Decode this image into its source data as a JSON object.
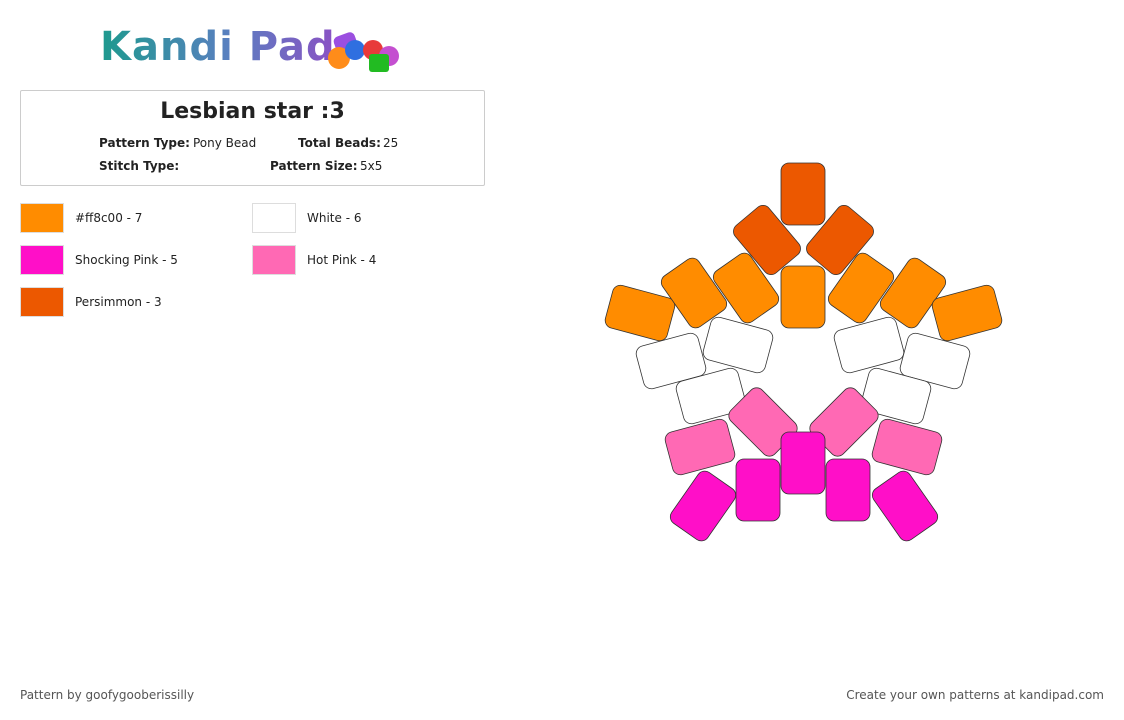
{
  "header": {
    "logo": "Kandi Pad"
  },
  "pattern": {
    "title": "Lesbian star :3",
    "fields": [
      {
        "label": "Pattern Type:",
        "value": "Pony Bead"
      },
      {
        "label": "Total Beads:",
        "value": "25"
      },
      {
        "label": "Stitch Type:",
        "value": ""
      },
      {
        "label": "Pattern Size:",
        "value": "5x5"
      }
    ]
  },
  "legend": [
    {
      "label": "#ff8c00 - 7",
      "color": "#ff8c00"
    },
    {
      "label": "White - 6",
      "color": "#ffffff"
    },
    {
      "label": "Shocking Pink - 5",
      "color": "#ff0fc8"
    },
    {
      "label": "Hot Pink - 4",
      "color": "#ff69b4"
    },
    {
      "label": "Persimmon - 3",
      "color": "#ec5800"
    }
  ],
  "footer": {
    "left": "Pattern by goofygooberissilly",
    "right": "Create your own patterns at kandipad.com"
  }
}
